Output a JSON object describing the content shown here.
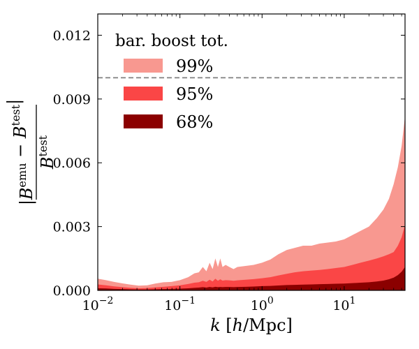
{
  "chart_data": {
    "type": "area",
    "title": "",
    "xscale": "log",
    "xlim": [
      0.01,
      55
    ],
    "ylim": [
      0,
      0.013
    ],
    "xlabel": "k [h/Mpc]",
    "ylabel": "|B^emu − B^test| / B^test",
    "x_ticks": [
      {
        "value": 0.01,
        "base": "10",
        "exp": "−2"
      },
      {
        "value": 0.1,
        "base": "10",
        "exp": "−1"
      },
      {
        "value": 1,
        "base": "10",
        "exp": "0"
      },
      {
        "value": 10,
        "base": "10",
        "exp": "1"
      }
    ],
    "y_ticks": [
      {
        "value": 0.0,
        "label": "0.000"
      },
      {
        "value": 0.003,
        "label": "0.003"
      },
      {
        "value": 0.006,
        "label": "0.006"
      },
      {
        "value": 0.009,
        "label": "0.009"
      },
      {
        "value": 0.012,
        "label": "0.012"
      }
    ],
    "reference_line": {
      "y": 0.01,
      "style": "dashed",
      "color": "#808080"
    },
    "legend": {
      "title": "bar. boost tot.",
      "placement": "top-left",
      "entries": [
        {
          "label": "99%",
          "color": "#f89890"
        },
        {
          "label": "95%",
          "color": "#fa4646"
        },
        {
          "label": "68%",
          "color": "#8b0000"
        }
      ]
    },
    "x": [
      0.01,
      0.0126,
      0.0158,
      0.02,
      0.025,
      0.0316,
      0.04,
      0.05,
      0.063,
      0.079,
      0.1,
      0.126,
      0.15,
      0.17,
      0.19,
      0.21,
      0.23,
      0.25,
      0.27,
      0.29,
      0.31,
      0.33,
      0.36,
      0.4,
      0.45,
      0.5,
      0.63,
      0.79,
      1.0,
      1.26,
      1.58,
      2.0,
      2.5,
      3.16,
      4.0,
      5.0,
      6.3,
      7.9,
      10,
      12.6,
      15.8,
      20,
      25,
      30,
      35,
      40,
      45,
      50,
      55
    ],
    "series": [
      {
        "name": "99%",
        "color": "#f89890",
        "values": [
          0.00055,
          0.00048,
          0.0004,
          0.00033,
          0.00027,
          0.00022,
          0.00024,
          0.00032,
          0.00038,
          0.0004,
          0.00048,
          0.00062,
          0.0008,
          0.00085,
          0.0011,
          0.0009,
          0.0013,
          0.001,
          0.0015,
          0.0011,
          0.0015,
          0.0011,
          0.0012,
          0.0011,
          0.001,
          0.0011,
          0.00115,
          0.0012,
          0.0013,
          0.00145,
          0.0017,
          0.0019,
          0.002,
          0.0021,
          0.0021,
          0.0022,
          0.00225,
          0.0023,
          0.0024,
          0.0026,
          0.0028,
          0.003,
          0.0034,
          0.0038,
          0.0043,
          0.005,
          0.0058,
          0.0068,
          0.0082
        ]
      },
      {
        "name": "95%",
        "color": "#fa4646",
        "values": [
          0.00028,
          0.00024,
          0.00019,
          0.00015,
          0.00012,
          0.0001,
          0.00011,
          0.00014,
          0.00017,
          0.0002,
          0.00024,
          0.0003,
          0.00036,
          0.00038,
          0.00045,
          0.0004,
          0.0005,
          0.00042,
          0.00055,
          0.00045,
          0.00052,
          0.00046,
          0.00048,
          0.00047,
          0.00045,
          0.00047,
          0.0005,
          0.00053,
          0.00057,
          0.00062,
          0.0007,
          0.00078,
          0.00085,
          0.0009,
          0.00093,
          0.00096,
          0.001,
          0.00105,
          0.0011,
          0.0012,
          0.0013,
          0.0014,
          0.0015,
          0.0016,
          0.0017,
          0.0018,
          0.0021,
          0.0025,
          0.0031
        ]
      },
      {
        "name": "68%",
        "color": "#8b0000",
        "values": [
          0.0001,
          9e-05,
          7e-05,
          6e-05,
          5e-05,
          4e-05,
          4e-05,
          5e-05,
          6e-05,
          7e-05,
          8e-05,
          0.0001,
          0.00012,
          0.00013,
          0.00015,
          0.00013,
          0.00016,
          0.00014,
          0.00017,
          0.00015,
          0.00016,
          0.00015,
          0.00016,
          0.00016,
          0.00015,
          0.00016,
          0.00017,
          0.00018,
          0.0002,
          0.00021,
          0.00023,
          0.00025,
          0.00026,
          0.00027,
          0.00028,
          0.00029,
          0.0003,
          0.00031,
          0.00032,
          0.00034,
          0.00036,
          0.00038,
          0.00042,
          0.00046,
          0.00052,
          0.0006,
          0.00072,
          0.00088,
          0.0011
        ]
      }
    ]
  }
}
